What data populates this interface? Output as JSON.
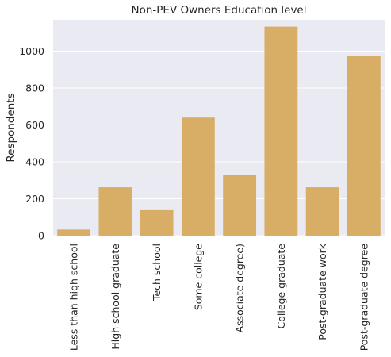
{
  "chart_data": {
    "type": "bar",
    "title": "Non-PEV Owners Education level",
    "xlabel": "",
    "ylabel": "Respondents",
    "categories": [
      "Less than high school",
      "High school graduate",
      "Tech school",
      "Some college",
      "Associate degree)",
      "College graduate",
      "Post-graduate work",
      "Post-graduate degree"
    ],
    "values": [
      33,
      262,
      138,
      640,
      328,
      1133,
      262,
      973
    ],
    "ylim": [
      0,
      1170
    ],
    "yticks": [
      0,
      200,
      400,
      600,
      800,
      1000
    ],
    "grid": true,
    "bar_color": "#d8ad66",
    "plot_background": "#eaeaf2",
    "grid_color": "#ffffff"
  }
}
